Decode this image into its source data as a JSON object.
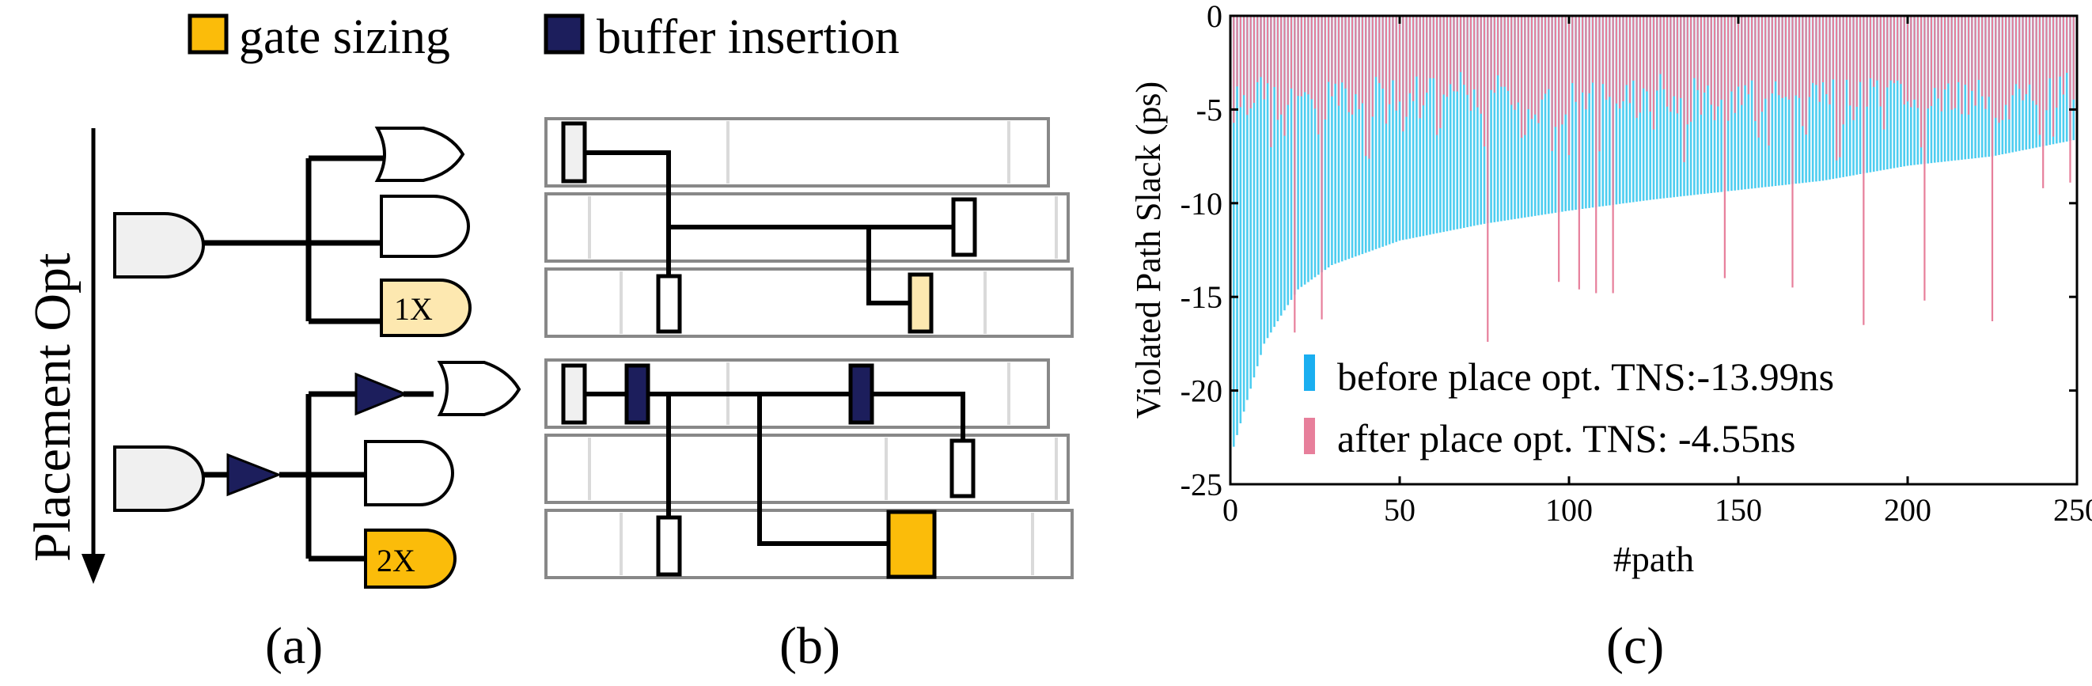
{
  "legend": {
    "gate_sizing": "gate sizing",
    "buffer_insertion": "buffer insertion",
    "colors": {
      "gate_sizing": "#fbbc0a",
      "buffer_insertion": "#1c1e5c"
    }
  },
  "panel_a": {
    "axis_label": "Placement Opt",
    "label_1x": "1X",
    "label_2x": "2X",
    "caption": "(a)"
  },
  "panel_b": {
    "caption": "(b)"
  },
  "panel_c": {
    "caption": "(c)",
    "chart_data": {
      "type": "bar",
      "xlabel": "#path",
      "ylabel": "Violated Path Slack (ps)",
      "xlim": [
        0,
        250
      ],
      "ylim": [
        -25,
        0
      ],
      "xticks": [
        "0",
        "50",
        "100",
        "150",
        "200",
        "250"
      ],
      "yticks": [
        "0",
        "-5",
        "-10",
        "-15",
        "-20",
        "-25"
      ],
      "num_paths": 250,
      "series": [
        {
          "name": "before place opt.",
          "legend_label": "before place opt. TNS:-13.99ns",
          "color": "#4dcdf0",
          "legend_color": "#1aaef0",
          "tns_ns": -13.99,
          "samples": [
            [
              1,
              -23.0
            ],
            [
              5,
              -20.5
            ],
            [
              10,
              -17.5
            ],
            [
              15,
              -16.0
            ],
            [
              20,
              -14.6
            ],
            [
              30,
              -13.3
            ],
            [
              50,
              -12.0
            ],
            [
              75,
              -11.1
            ],
            [
              100,
              -10.4
            ],
            [
              125,
              -9.8
            ],
            [
              150,
              -9.3
            ],
            [
              175,
              -8.8
            ],
            [
              200,
              -8.0
            ],
            [
              225,
              -7.5
            ],
            [
              250,
              -6.6
            ]
          ]
        },
        {
          "name": "after place opt.",
          "legend_label": "after place opt. TNS: -4.55ns",
          "color": "#e77f9b",
          "legend_color": "#e77f9b",
          "tns_ns": -4.55,
          "typical_range": [
            -1,
            -9
          ],
          "spikes": [
            [
              19,
              -16.9
            ],
            [
              27,
              -16.2
            ],
            [
              76,
              -17.4
            ],
            [
              97,
              -14.2
            ],
            [
              103,
              -14.6
            ],
            [
              108,
              -14.8
            ],
            [
              113,
              -14.8
            ],
            [
              146,
              -14.0
            ],
            [
              166,
              -14.5
            ],
            [
              187,
              -16.5
            ],
            [
              205,
              -15.2
            ],
            [
              225,
              -16.3
            ],
            [
              240,
              -9.2
            ],
            [
              248,
              -8.9
            ]
          ]
        }
      ]
    }
  }
}
